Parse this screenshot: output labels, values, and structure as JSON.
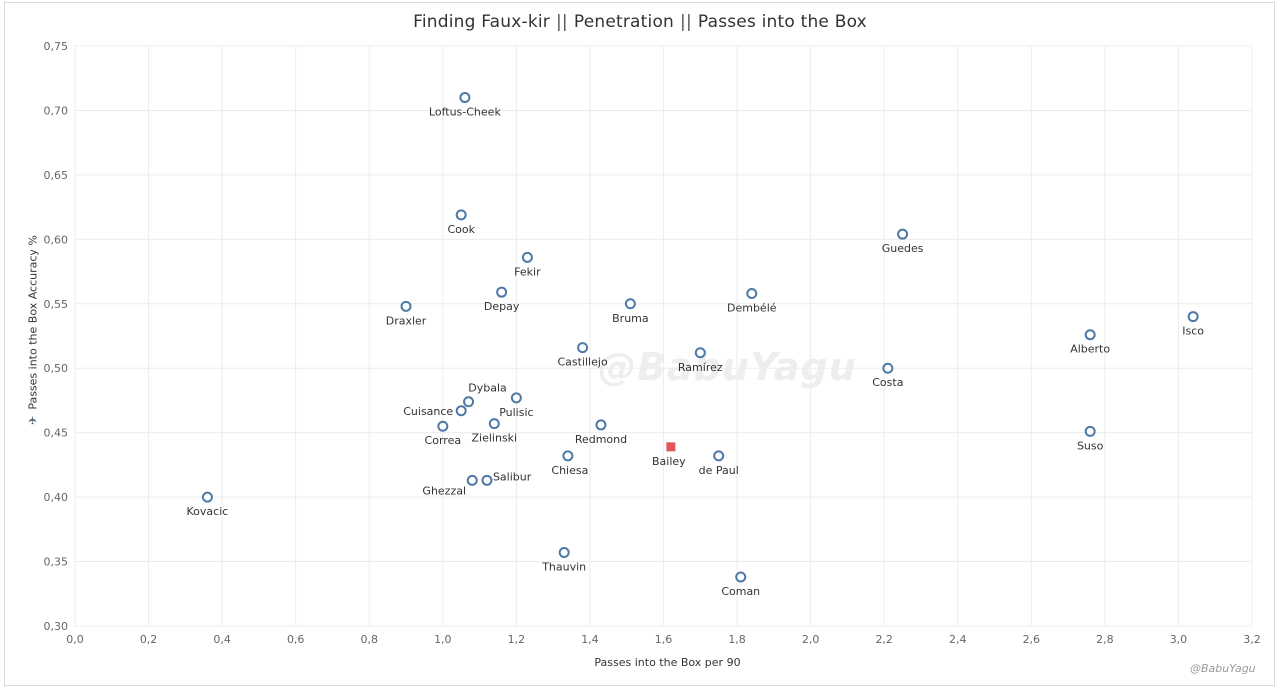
{
  "chart_data": {
    "type": "scatter",
    "title_parts": [
      "Finding Faux-kir",
      "Penetration",
      "Passes into the Box"
    ],
    "title_separator": "||",
    "xlabel": "Passes into the Box per 90",
    "ylabel": "Passes into the Box Accuracy %",
    "xlim": [
      0.0,
      3.2
    ],
    "ylim": [
      0.3,
      0.75
    ],
    "x_ticks": [
      "0,0",
      "0,2",
      "0,4",
      "0,6",
      "0,8",
      "1,0",
      "1,2",
      "1,4",
      "1,6",
      "1,8",
      "2,0",
      "2,2",
      "2,4",
      "2,6",
      "2,8",
      "3,0",
      "3,2"
    ],
    "y_ticks": [
      "0,30",
      "0,35",
      "0,40",
      "0,45",
      "0,50",
      "0,55",
      "0,60",
      "0,65",
      "0,70",
      "0,75"
    ],
    "grid": true,
    "colors": {
      "circle": "#4e79a7",
      "highlight": "#e15759",
      "grid": "#ececec"
    },
    "points": [
      {
        "name": "Loftus-Cheek",
        "x": 1.06,
        "y": 0.71
      },
      {
        "name": "Cook",
        "x": 1.05,
        "y": 0.619
      },
      {
        "name": "Guedes",
        "x": 2.25,
        "y": 0.604
      },
      {
        "name": "Fekir",
        "x": 1.23,
        "y": 0.586
      },
      {
        "name": "Depay",
        "x": 1.16,
        "y": 0.559
      },
      {
        "name": "Dembélé",
        "x": 1.84,
        "y": 0.558
      },
      {
        "name": "Draxler",
        "x": 0.9,
        "y": 0.548
      },
      {
        "name": "Bruma",
        "x": 1.51,
        "y": 0.55
      },
      {
        "name": "Isco",
        "x": 3.04,
        "y": 0.54
      },
      {
        "name": "Alberto",
        "x": 2.76,
        "y": 0.526
      },
      {
        "name": "Castillejo",
        "x": 1.38,
        "y": 0.516
      },
      {
        "name": "Ramírez",
        "x": 1.7,
        "y": 0.512
      },
      {
        "name": "Costa",
        "x": 2.21,
        "y": 0.5
      },
      {
        "name": "Dybala",
        "x": 1.07,
        "y": 0.474
      },
      {
        "name": "Pulisic",
        "x": 1.2,
        "y": 0.477
      },
      {
        "name": "Cuisance",
        "x": 1.05,
        "y": 0.467
      },
      {
        "name": "Zielinski",
        "x": 1.14,
        "y": 0.457
      },
      {
        "name": "Correa",
        "x": 1.0,
        "y": 0.455
      },
      {
        "name": "Redmond",
        "x": 1.43,
        "y": 0.456
      },
      {
        "name": "Suso",
        "x": 2.76,
        "y": 0.451
      },
      {
        "name": "Bailey",
        "x": 1.62,
        "y": 0.439,
        "highlight": true
      },
      {
        "name": "Chiesa",
        "x": 1.34,
        "y": 0.432
      },
      {
        "name": "de Paul",
        "x": 1.75,
        "y": 0.432
      },
      {
        "name": "Salibur",
        "x": 1.12,
        "y": 0.413
      },
      {
        "name": "Ghezzal",
        "x": 1.08,
        "y": 0.413
      },
      {
        "name": "Kovacic",
        "x": 0.36,
        "y": 0.4
      },
      {
        "name": "Thauvin",
        "x": 1.33,
        "y": 0.357
      },
      {
        "name": "Coman",
        "x": 1.81,
        "y": 0.338
      }
    ]
  },
  "watermark": "@BabuYagu",
  "credit": "@BabuYagu"
}
